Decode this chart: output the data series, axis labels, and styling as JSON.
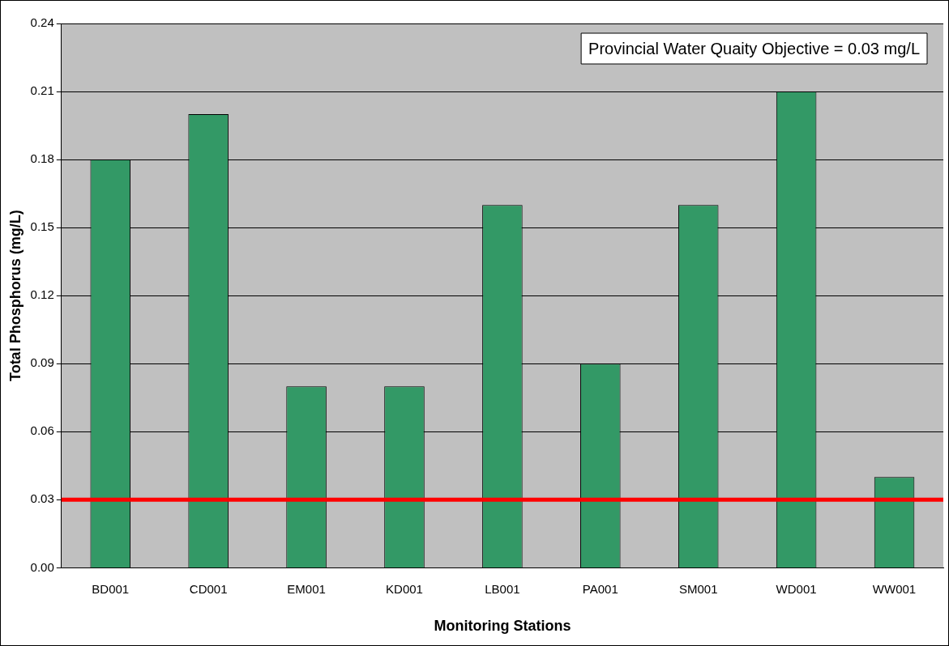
{
  "chart_data": {
    "type": "bar",
    "xlabel": "Monitoring Stations",
    "ylabel": "Total Phosphorus (mg/L)",
    "categories": [
      "BD001",
      "CD001",
      "EM001",
      "KD001",
      "LB001",
      "PA001",
      "SM001",
      "WD001",
      "WW001"
    ],
    "values": [
      0.18,
      0.2,
      0.08,
      0.08,
      0.16,
      0.09,
      0.16,
      0.21,
      0.04
    ],
    "color": "#339966",
    "ylim": [
      0,
      0.24
    ],
    "yticks": [
      {
        "value": 0,
        "label": "0.00"
      },
      0.03,
      0.06,
      0.09,
      0.12,
      0.15,
      0.18,
      0.21,
      0.24
    ],
    "grid": "y",
    "legend": false,
    "ref_lines": [
      {
        "axis": "y",
        "value": 0.03,
        "color": "#ff0000"
      }
    ],
    "annotations": [
      "Provincial Water Quaity Objective = 0.03 mg/L"
    ]
  }
}
